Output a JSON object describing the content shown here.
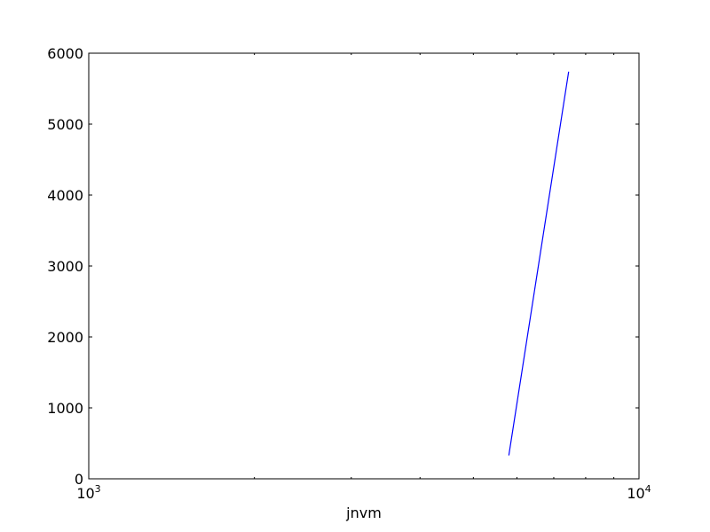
{
  "chart_data": {
    "type": "line",
    "title": "",
    "xlabel": "jnvm",
    "ylabel": "",
    "xscale": "log",
    "xlim": [
      1000,
      10000
    ],
    "ylim": [
      0,
      6000
    ],
    "grid": false,
    "x_major_ticks": [
      {
        "value": 1000,
        "base": "10",
        "exponent": "3"
      },
      {
        "value": 10000,
        "base": "10",
        "exponent": "4"
      }
    ],
    "x_minor_ticks": [
      2000,
      3000,
      4000,
      5000,
      6000,
      7000,
      8000,
      9000
    ],
    "y_ticks": [
      {
        "value": 0,
        "label": "0"
      },
      {
        "value": 1000,
        "label": "1000"
      },
      {
        "value": 2000,
        "label": "2000"
      },
      {
        "value": 3000,
        "label": "3000"
      },
      {
        "value": 4000,
        "label": "4000"
      },
      {
        "value": 5000,
        "label": "5000"
      },
      {
        "value": 6000,
        "label": "6000"
      }
    ],
    "series": [
      {
        "color": "#0000ff",
        "points": [
          {
            "x": 5800,
            "y": 330
          },
          {
            "x": 7450,
            "y": 5740
          }
        ]
      }
    ]
  }
}
